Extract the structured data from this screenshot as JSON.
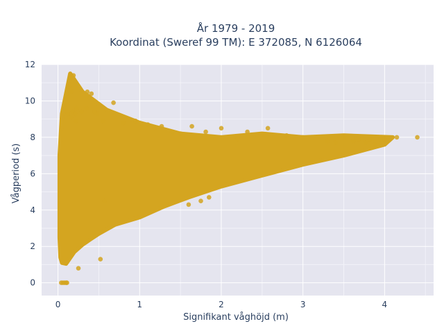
{
  "chart_data": {
    "type": "scatter",
    "title_line1": "År 1979 - 2019",
    "title_line2": "Koordinat (Sweref 99 TM): E 372085, N 6126064",
    "xlabel": "Signifikant våghöjd (m)",
    "ylabel": "Vågperiod (s)",
    "xlim": [
      -0.2,
      4.6
    ],
    "ylim": [
      -0.7,
      12
    ],
    "xticks": [
      "0",
      "1",
      "2",
      "3",
      "4"
    ],
    "yticks": [
      "0",
      "2",
      "4",
      "6",
      "8",
      "10",
      "12"
    ],
    "grid": true,
    "marker_color": "#d4a520",
    "plot_background": "#e5e5ef",
    "envelope": [
      [
        0.03,
        1.4
      ],
      [
        0.05,
        1.1
      ],
      [
        0.1,
        1.05
      ],
      [
        0.2,
        1.7
      ],
      [
        0.3,
        2.1
      ],
      [
        0.4,
        2.4
      ],
      [
        0.5,
        2.7
      ],
      [
        0.7,
        3.2
      ],
      [
        1.0,
        3.6
      ],
      [
        1.3,
        4.2
      ],
      [
        1.6,
        4.7
      ],
      [
        2.0,
        5.3
      ],
      [
        2.5,
        5.9
      ],
      [
        3.0,
        6.5
      ],
      [
        3.5,
        7.0
      ],
      [
        4.0,
        7.6
      ],
      [
        4.1,
        8.0
      ],
      [
        3.5,
        8.1
      ],
      [
        3.0,
        8.0
      ],
      [
        2.5,
        8.2
      ],
      [
        2.0,
        8.0
      ],
      [
        1.5,
        8.2
      ],
      [
        1.0,
        8.8
      ],
      [
        0.6,
        9.5
      ],
      [
        0.3,
        10.5
      ],
      [
        0.15,
        11.5
      ],
      [
        0.05,
        9.3
      ],
      [
        0.02,
        7.0
      ],
      [
        0.02,
        2.5
      ]
    ],
    "points": [
      [
        0.04,
        0.0
      ],
      [
        0.06,
        0.0
      ],
      [
        0.08,
        0.0
      ],
      [
        0.1,
        0.0
      ],
      [
        0.11,
        0.0
      ],
      [
        0.19,
        11.4
      ],
      [
        0.13,
        10.8
      ],
      [
        0.16,
        10.5
      ],
      [
        0.36,
        10.5
      ],
      [
        0.38,
        10.2
      ],
      [
        0.41,
        10.4
      ],
      [
        0.68,
        9.9
      ],
      [
        0.23,
        9.6
      ],
      [
        0.29,
        9.4
      ],
      [
        0.35,
        9.6
      ],
      [
        0.45,
        9.4
      ],
      [
        0.48,
        9.3
      ],
      [
        0.18,
        9.4
      ],
      [
        0.21,
        9.3
      ],
      [
        0.95,
        8.9
      ],
      [
        1.18,
        8.5
      ],
      [
        1.27,
        8.6
      ],
      [
        1.4,
        8.3
      ],
      [
        1.64,
        8.6
      ],
      [
        1.81,
        8.3
      ],
      [
        2.0,
        8.5
      ],
      [
        2.32,
        8.3
      ],
      [
        2.57,
        8.5
      ],
      [
        2.8,
        8.1
      ],
      [
        3.0,
        8.0
      ],
      [
        3.5,
        8.0
      ],
      [
        3.62,
        7.8
      ],
      [
        3.82,
        7.9
      ],
      [
        3.95,
        7.9
      ],
      [
        4.0,
        7.9
      ],
      [
        4.15,
        8.0
      ],
      [
        4.4,
        8.0
      ],
      [
        3.77,
        7.7
      ],
      [
        3.88,
        7.6
      ],
      [
        3.68,
        7.9
      ],
      [
        3.3,
        7.8
      ],
      [
        3.4,
        7.7
      ],
      [
        2.2,
        7.9
      ],
      [
        1.5,
        8.2
      ],
      [
        1.1,
        8.7
      ],
      [
        0.8,
        8.8
      ],
      [
        0.55,
        8.9
      ],
      [
        0.22,
        8.9
      ],
      [
        0.16,
        9.1
      ],
      [
        0.12,
        9.3
      ],
      [
        0.57,
        4.5
      ],
      [
        1.35,
        4.3
      ],
      [
        1.6,
        4.3
      ],
      [
        1.75,
        4.5
      ],
      [
        1.85,
        4.7
      ],
      [
        0.25,
        0.8
      ],
      [
        0.52,
        1.3
      ]
    ]
  }
}
